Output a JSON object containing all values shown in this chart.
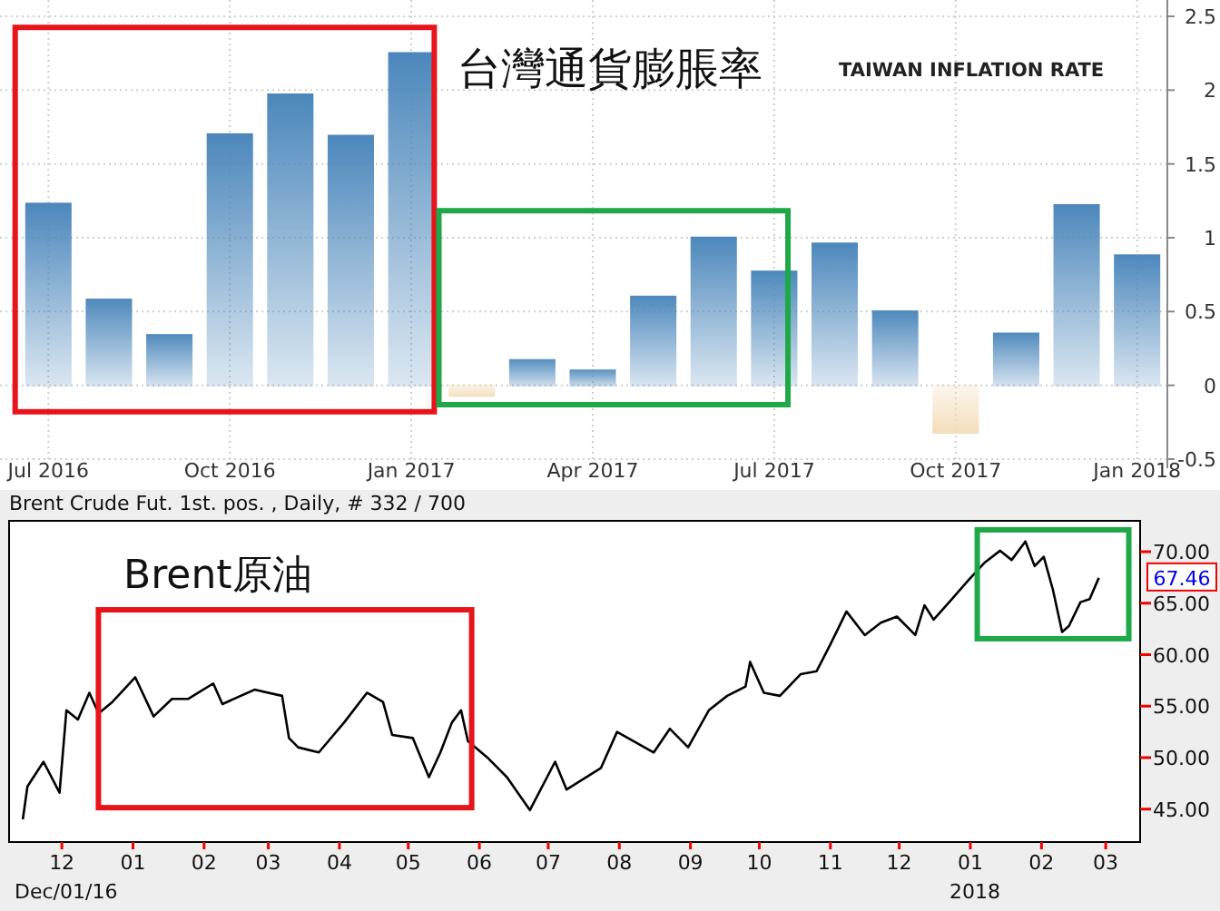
{
  "chart_data": [
    {
      "type": "bar",
      "title": "台灣通貨膨脹率",
      "subtitle": "TAIWAN INFLATION RATE",
      "categories": [
        "Jul 2016",
        null,
        null,
        "Oct 2016",
        null,
        null,
        "Jan 2017",
        null,
        null,
        "Apr 2017",
        null,
        null,
        "Jul 2017",
        null,
        null,
        "Oct 2017",
        null,
        null,
        "Jan 2018"
      ],
      "values": [
        1.23,
        0.58,
        0.34,
        1.7,
        1.97,
        1.69,
        2.25,
        -0.07,
        0.17,
        0.1,
        0.6,
        1.0,
        0.77,
        0.96,
        0.5,
        -0.32,
        0.35,
        1.22,
        0.88
      ],
      "colors": [
        "#4a86bb",
        "#4a86bb",
        "#4a86bb",
        "#4a86bb",
        "#4a86bb",
        "#4a86bb",
        "#4a86bb",
        "#f3dcb8",
        "#4a86bb",
        "#4a86bb",
        "#4a86bb",
        "#4a86bb",
        "#4a86bb",
        "#4a86bb",
        "#4a86bb",
        "#f3dcb8",
        "#4a86bb",
        "#4a86bb",
        "#4a86bb"
      ],
      "ylim": [
        -0.5,
        2.5
      ],
      "yticks": [
        -0.5,
        0,
        0.5,
        1,
        1.5,
        2,
        2.5
      ],
      "grid": true
    },
    {
      "type": "line",
      "title": "Brent原油",
      "subtitle": "Brent Crude Fut. 1st. pos. , Daily, # 332 / 700",
      "x": [
        "2016-11-14",
        "2016-11-16",
        "2016-11-23",
        "2016-11-30",
        "2016-12-03",
        "2016-12-08",
        "2016-12-13",
        "2016-12-17",
        "2016-12-23",
        "2017-01-02",
        "2017-01-10",
        "2017-01-18",
        "2017-01-25",
        "2017-02-05",
        "2017-02-09",
        "2017-02-23",
        "2017-03-07",
        "2017-03-10",
        "2017-03-14",
        "2017-03-23",
        "2017-04-03",
        "2017-04-13",
        "2017-04-20",
        "2017-04-24",
        "2017-05-03",
        "2017-05-10",
        "2017-05-15",
        "2017-05-20",
        "2017-05-24",
        "2017-05-27",
        "2017-06-05",
        "2017-06-13",
        "2017-06-23",
        "2017-07-04",
        "2017-07-09",
        "2017-07-24",
        "2017-07-31",
        "2017-08-16",
        "2017-08-23",
        "2017-08-31",
        "2017-09-09",
        "2017-09-17",
        "2017-09-25",
        "2017-09-27",
        "2017-10-03",
        "2017-10-10",
        "2017-10-19",
        "2017-10-26",
        "2017-11-01",
        "2017-11-08",
        "2017-11-16",
        "2017-11-23",
        "2017-11-30",
        "2017-12-08",
        "2017-12-12",
        "2017-12-16",
        "2017-12-24",
        "2017-12-31",
        "2018-01-07",
        "2018-01-14",
        "2018-01-19",
        "2018-01-25",
        "2018-01-29",
        "2018-02-02",
        "2018-02-06",
        "2018-02-10",
        "2018-02-13",
        "2018-02-18",
        "2018-02-22",
        "2018-02-26"
      ],
      "series": [
        {
          "color": "#000000",
          "values": [
            44.0,
            47.2,
            49.6,
            46.6,
            54.6,
            53.7,
            56.3,
            54.3,
            55.4,
            57.8,
            54.0,
            55.7,
            55.7,
            57.2,
            55.2,
            56.6,
            56.0,
            51.9,
            51.0,
            50.5,
            53.4,
            56.3,
            55.4,
            52.2,
            51.9,
            48.1,
            50.5,
            53.4,
            54.6,
            51.6,
            49.9,
            48.1,
            44.9,
            49.6,
            46.9,
            49.0,
            52.5,
            50.5,
            52.8,
            51.0,
            54.6,
            56.0,
            56.9,
            59.3,
            56.3,
            56.0,
            58.1,
            58.4,
            61.0,
            64.2,
            61.9,
            63.1,
            63.7,
            61.9,
            64.8,
            63.4,
            65.4,
            67.2,
            68.9,
            70.1,
            69.2,
            71.0,
            68.6,
            69.5,
            66.3,
            62.2,
            62.8,
            65.1,
            65.4,
            67.46
          ]
        }
      ],
      "xlim": [
        "2016-11-08",
        "2018-03-16"
      ],
      "xticks": [
        {
          "value": "2016-12-01",
          "label": "12"
        },
        {
          "value": "2017-01-01",
          "label": "01"
        },
        {
          "value": "2017-02-01",
          "label": "02"
        },
        {
          "value": "2017-03-01",
          "label": "03"
        },
        {
          "value": "2017-04-01",
          "label": "04"
        },
        {
          "value": "2017-05-01",
          "label": "05"
        },
        {
          "value": "2017-06-01",
          "label": "06"
        },
        {
          "value": "2017-07-01",
          "label": "07"
        },
        {
          "value": "2017-08-01",
          "label": "08"
        },
        {
          "value": "2017-09-01",
          "label": "09"
        },
        {
          "value": "2017-10-01",
          "label": "10"
        },
        {
          "value": "2017-11-01",
          "label": "11"
        },
        {
          "value": "2017-12-01",
          "label": "12"
        },
        {
          "value": "2018-01-01",
          "label": "01"
        },
        {
          "value": "2018-02-01",
          "label": "02"
        },
        {
          "value": "2018-03-01",
          "label": "03"
        }
      ],
      "ylim": [
        41.8,
        73.0
      ],
      "yticks": [
        {
          "value": 45,
          "label": "45.00"
        },
        {
          "value": 50,
          "label": "50.00"
        },
        {
          "value": 55,
          "label": "55.00"
        },
        {
          "value": 60,
          "label": "60.00"
        },
        {
          "value": 65,
          "label": "65.00"
        },
        {
          "value": 70,
          "label": "70.00"
        }
      ],
      "annotations": [
        "Dec/01/16",
        "2018",
        {
          "text": "67.46",
          "x": "2018-02-26",
          "y": 67.46
        }
      ],
      "marker": "none",
      "line_style": "solid",
      "grid": false
    }
  ]
}
